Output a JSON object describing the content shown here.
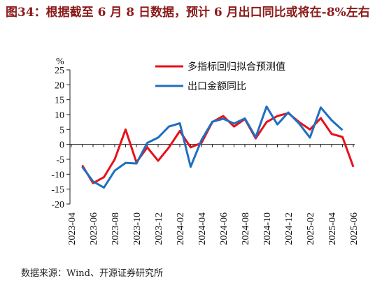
{
  "chart_data": {
    "type": "line",
    "title": "图34：根据截至 6 月 8 日数据，预计 6 月出口同比或将在-8%左右",
    "y_label": "%",
    "source": "数据来源：Wind、开源证券研究所",
    "categories": [
      "2023-04",
      null,
      "2023-06",
      null,
      "2023-08",
      null,
      "2023-10",
      null,
      "2023-12",
      null,
      "2024-02",
      null,
      "2024-04",
      null,
      "2024-06",
      null,
      "2024-08",
      null,
      "2024-10",
      null,
      "2024-12",
      null,
      "2025-02",
      null,
      "2025-04",
      null,
      "2025-06"
    ],
    "series": [
      {
        "name": "多指标回归拟合预测值",
        "color": "#e8101a",
        "values": [
          null,
          -7,
          -13,
          -11,
          -5,
          5,
          -6,
          -1,
          -5.5,
          -1,
          4.5,
          -1,
          0.5,
          7.5,
          9.5,
          6,
          8.5,
          2,
          7.5,
          9.5,
          10.5,
          7.5,
          5,
          8.8,
          3.5,
          2.5,
          -7.5
        ]
      },
      {
        "name": "出口金额同比",
        "color": "#1f6fbf",
        "values": [
          null,
          -7.5,
          -12.4,
          -14.5,
          -8.8,
          -6.2,
          -6.4,
          0.5,
          2.3,
          6,
          7.1,
          -7.5,
          1.5,
          7.6,
          8.6,
          7.0,
          8.7,
          2.4,
          12.7,
          6.7,
          10.7,
          7,
          2.3,
          12.4,
          8.1,
          4.8,
          null
        ]
      }
    ],
    "ylim": [
      -20,
      25
    ],
    "yticks": [
      -20,
      -15,
      -10,
      -5,
      0,
      5,
      10,
      15,
      20,
      25
    ],
    "legend": "top"
  }
}
